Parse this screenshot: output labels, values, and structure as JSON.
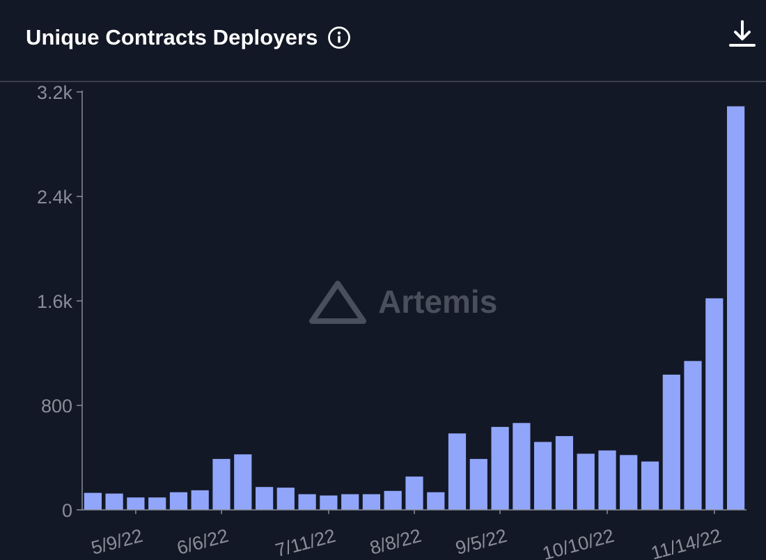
{
  "header": {
    "title": "Unique Contracts Deployers",
    "info_icon": "info-circle-icon",
    "download_icon": "download-icon"
  },
  "watermark": {
    "text": "Artemis",
    "icon": "triangle-logo-icon"
  },
  "colors": {
    "background": "#131826",
    "bar": "#91a6fa",
    "axis": "#8a8e99",
    "watermark": "#4a4f5c"
  },
  "chart_data": {
    "type": "bar",
    "title": "Unique Contracts Deployers",
    "xlabel": "",
    "ylabel": "",
    "ylim": [
      0,
      3200
    ],
    "y_ticks": [
      0,
      800,
      1600,
      2400,
      3200
    ],
    "y_tick_labels": [
      "0",
      "800",
      "1.6k",
      "2.4k",
      "3.2k"
    ],
    "x_tick_labels": [
      "5/9/22",
      "6/6/22",
      "7/11/22",
      "8/8/22",
      "9/5/22",
      "10/10/22",
      "11/14/22"
    ],
    "x_tick_positions": [
      2,
      6,
      11,
      15,
      19,
      24,
      29
    ],
    "values": [
      130,
      125,
      95,
      95,
      135,
      150,
      390,
      425,
      175,
      170,
      120,
      110,
      120,
      120,
      145,
      255,
      135,
      585,
      390,
      635,
      665,
      520,
      565,
      430,
      455,
      420,
      370,
      1035,
      1140,
      1620,
      3090
    ],
    "grid": false,
    "legend": "none"
  }
}
